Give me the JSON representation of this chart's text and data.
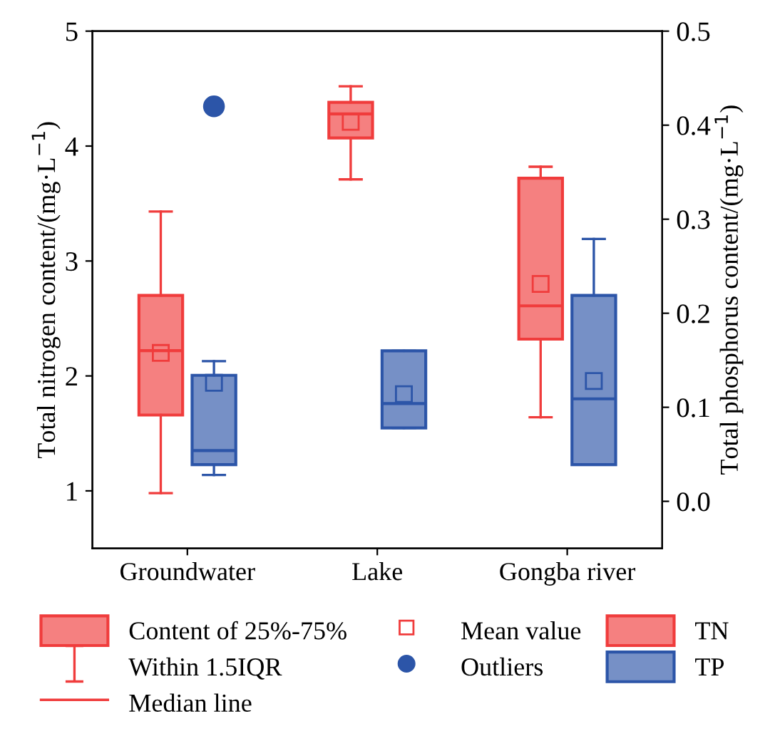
{
  "chart_data": {
    "type": "box",
    "categories": [
      "Groundwater",
      "Lake",
      "Gongba river"
    ],
    "ylabel": "Total nitrogen content/(mg·L$^{−1}$)",
    "y2label": "Total phosphorus content/(mg·L$^{−1}$)",
    "ylim": [
      0.5,
      5
    ],
    "yticks": [
      1,
      2,
      3,
      4,
      5
    ],
    "y2lim": [
      -0.05,
      0.5
    ],
    "y2ticks": [
      {
        "value": 0,
        "label": "0.0"
      },
      0.1,
      0.2,
      0.3,
      0.4,
      0.5
    ],
    "series": [
      {
        "name": "TN",
        "color": "#f03c3c",
        "axis": "y",
        "boxes": [
          {
            "low": 0.98,
            "q1": 1.66,
            "median": 2.22,
            "q3": 2.7,
            "high": 3.43,
            "mean": 2.2
          },
          {
            "low": 3.71,
            "q1": 4.07,
            "median": 4.28,
            "q3": 4.38,
            "high": 4.52,
            "mean": 4.21
          },
          {
            "low": 1.64,
            "q1": 2.32,
            "median": 2.61,
            "q3": 3.72,
            "high": 3.82,
            "mean": 2.8
          }
        ]
      },
      {
        "name": "TP",
        "color": "#2c55a8",
        "axis": "y2",
        "boxes": [
          {
            "low": 0.028,
            "q1": 0.039,
            "median": 0.054,
            "q3": 0.134,
            "high": 0.149,
            "mean": 0.126,
            "outliers": [
              0.42
            ]
          },
          {
            "low": 0.078,
            "q1": 0.078,
            "median": 0.104,
            "q3": 0.16,
            "high": 0.16,
            "mean": 0.114
          },
          {
            "low": 0.039,
            "q1": 0.039,
            "median": 0.109,
            "q3": 0.219,
            "high": 0.279,
            "mean": 0.128
          }
        ]
      }
    ],
    "annotations": [
      "Content of 25%-75%",
      "Within 1.5IQR",
      "Median line",
      "Mean value",
      "Outliers"
    ],
    "legend": "bottom",
    "grid": false
  }
}
